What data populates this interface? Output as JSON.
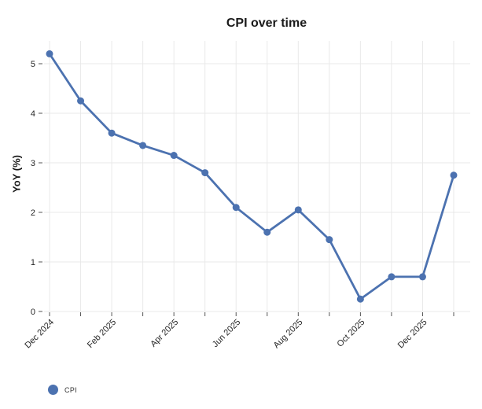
{
  "figure": {
    "title": "CPI over time",
    "y_axis_label": "YoY (%)",
    "legend": {
      "items": [
        {
          "label": "CPI",
          "marker": "circle-icon",
          "color": "#4C72B0"
        }
      ]
    }
  },
  "chart_data": {
    "type": "line",
    "title": "CPI over time",
    "xlabel": "",
    "ylabel": "YoY (%)",
    "x": [
      "Dec 2024",
      "Jan 2025",
      "Feb 2025",
      "Mar 2025",
      "Apr 2025",
      "May 2025",
      "Jun 2025",
      "Jul 2025",
      "Aug 2025",
      "Sep 2025",
      "Oct 2025",
      "Nov 2025",
      "Dec 2025",
      "Jan 2026"
    ],
    "x_tick_labels_shown": [
      "Dec 2024",
      "Feb 2025",
      "Apr 2025",
      "Jun 2025",
      "Aug 2025",
      "Oct 2025",
      "Dec 2025"
    ],
    "x_tick_interval": 2,
    "y_ticks": [
      0,
      1,
      2,
      3,
      4,
      5
    ],
    "ylim": [
      0,
      5.45
    ],
    "grid": true,
    "grid_color": "#e9e9e9",
    "legend_position": "bottom-left",
    "series": [
      {
        "name": "CPI",
        "color": "#4C72B0",
        "values": [
          5.2,
          4.25,
          3.6,
          3.35,
          3.15,
          2.8,
          2.1,
          1.6,
          2.05,
          1.45,
          0.25,
          0.7,
          0.7,
          2.75
        ]
      }
    ]
  }
}
